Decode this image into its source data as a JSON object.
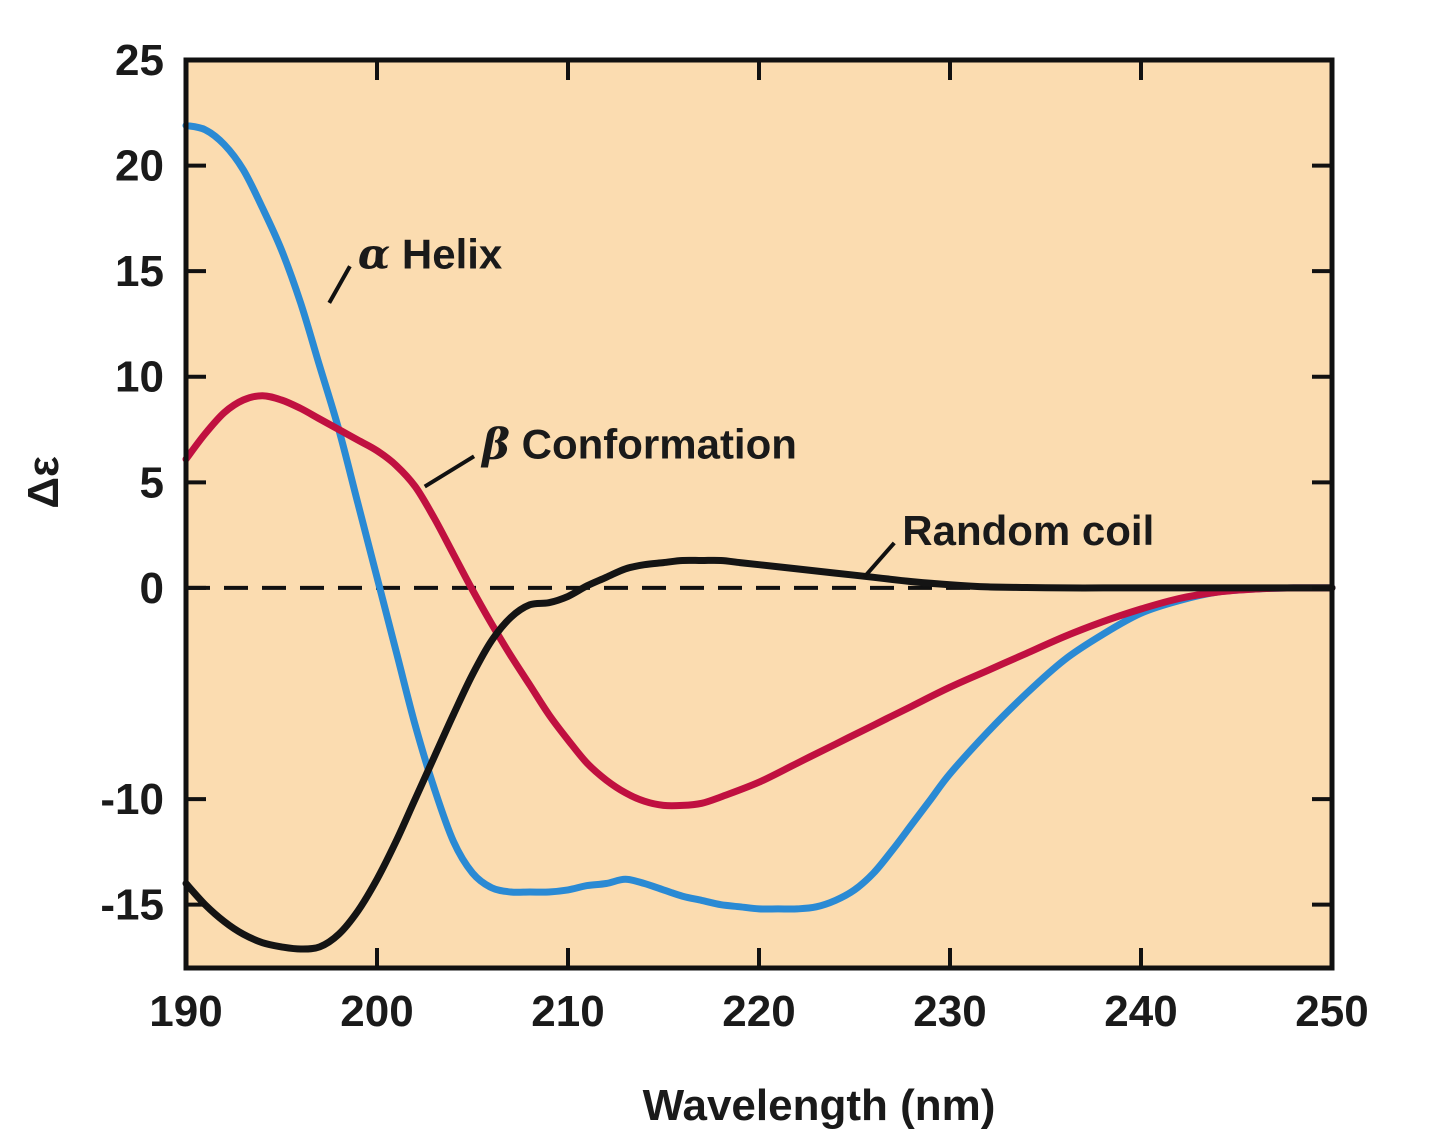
{
  "chart_data": {
    "type": "line",
    "title": "",
    "xlabel": "Wavelength (nm)",
    "ylabel": "Δε",
    "xlim": [
      190,
      250
    ],
    "ylim": [
      -18,
      25
    ],
    "x_ticks": [
      190,
      200,
      210,
      220,
      230,
      240,
      250
    ],
    "y_ticks": [
      -15,
      -10,
      0,
      5,
      10,
      15,
      20,
      25
    ],
    "background_color": "#fbdcb0",
    "grid": false,
    "zero_line": "dashed",
    "series": [
      {
        "name": "Helix",
        "name_prefix": "α",
        "color": "#2a8ad4",
        "x": [
          190,
          191,
          192,
          193,
          194,
          195,
          196,
          197,
          198,
          199,
          200,
          201,
          202,
          203,
          204,
          205,
          206,
          207,
          208,
          209,
          210,
          211,
          212,
          213,
          214,
          215,
          216,
          217,
          218,
          219,
          220,
          221,
          222,
          223,
          224,
          225,
          226,
          227,
          228,
          229,
          230,
          232,
          234,
          236,
          238,
          240,
          242,
          244,
          246,
          248,
          250
        ],
        "y": [
          21.9,
          21.7,
          21,
          19.8,
          18,
          16,
          13.5,
          10.5,
          7.5,
          4,
          0.5,
          -3,
          -6.5,
          -9.5,
          -12,
          -13.5,
          -14.2,
          -14.4,
          -14.4,
          -14.4,
          -14.3,
          -14.1,
          -14,
          -13.8,
          -14,
          -14.3,
          -14.6,
          -14.8,
          -15,
          -15.1,
          -15.2,
          -15.2,
          -15.2,
          -15.1,
          -14.8,
          -14.3,
          -13.5,
          -12.4,
          -11.2,
          -10,
          -8.8,
          -6.8,
          -5,
          -3.4,
          -2.2,
          -1.2,
          -0.6,
          -0.2,
          -0.05,
          0,
          0
        ]
      },
      {
        "name": "Conformation",
        "name_prefix": "β",
        "color": "#c01040",
        "x": [
          190,
          191,
          192,
          193,
          194,
          195,
          196,
          197,
          198,
          199,
          200,
          201,
          202,
          203,
          204,
          205,
          206,
          207,
          208,
          209,
          210,
          211,
          212,
          213,
          214,
          215,
          216,
          217,
          218,
          220,
          222,
          224,
          226,
          228,
          230,
          232,
          234,
          236,
          238,
          240,
          242,
          244,
          246,
          248,
          250
        ],
        "y": [
          6.1,
          7.3,
          8.3,
          8.9,
          9.1,
          8.9,
          8.5,
          8,
          7.5,
          7,
          6.5,
          5.8,
          4.8,
          3.3,
          1.6,
          -0.1,
          -1.7,
          -3.2,
          -4.6,
          -6,
          -7.2,
          -8.3,
          -9.1,
          -9.7,
          -10.1,
          -10.3,
          -10.3,
          -10.2,
          -9.9,
          -9.2,
          -8.3,
          -7.4,
          -6.5,
          -5.6,
          -4.7,
          -3.9,
          -3.1,
          -2.3,
          -1.6,
          -1,
          -0.5,
          -0.2,
          -0.05,
          0,
          0
        ]
      },
      {
        "name": "Random coil",
        "name_prefix": "",
        "color": "#141414",
        "x": [
          190,
          191,
          192,
          193,
          194,
          195,
          196,
          197,
          198,
          199,
          200,
          201,
          202,
          203,
          204,
          205,
          206,
          207,
          208,
          209,
          210,
          211,
          212,
          213,
          214,
          215,
          216,
          217,
          218,
          219,
          220,
          222,
          224,
          226,
          228,
          230,
          232,
          234,
          236,
          238,
          240,
          242,
          244,
          246,
          248,
          250
        ],
        "y": [
          -14,
          -15,
          -15.8,
          -16.4,
          -16.8,
          -17,
          -17.1,
          -17,
          -16.4,
          -15.3,
          -13.8,
          -12,
          -10,
          -8,
          -6,
          -4.1,
          -2.5,
          -1.4,
          -0.8,
          -0.7,
          -0.4,
          0.1,
          0.5,
          0.9,
          1.1,
          1.2,
          1.3,
          1.3,
          1.3,
          1.2,
          1.1,
          0.9,
          0.7,
          0.5,
          0.3,
          0.15,
          0.05,
          0.02,
          0,
          0,
          0,
          0,
          0,
          0,
          0,
          0
        ]
      }
    ],
    "annotations": [
      {
        "series": "Helix",
        "label_x": 199,
        "label_y": 15.8,
        "point_x": 197.5,
        "point_y": 13.5
      },
      {
        "series": "Conformation",
        "label_x": 205.5,
        "label_y": 6.8,
        "point_x": 202.5,
        "point_y": 4.8
      },
      {
        "series": "Random coil",
        "label_x": 227.5,
        "label_y": 2.7,
        "point_x": 225.5,
        "point_y": 0.5
      }
    ]
  }
}
